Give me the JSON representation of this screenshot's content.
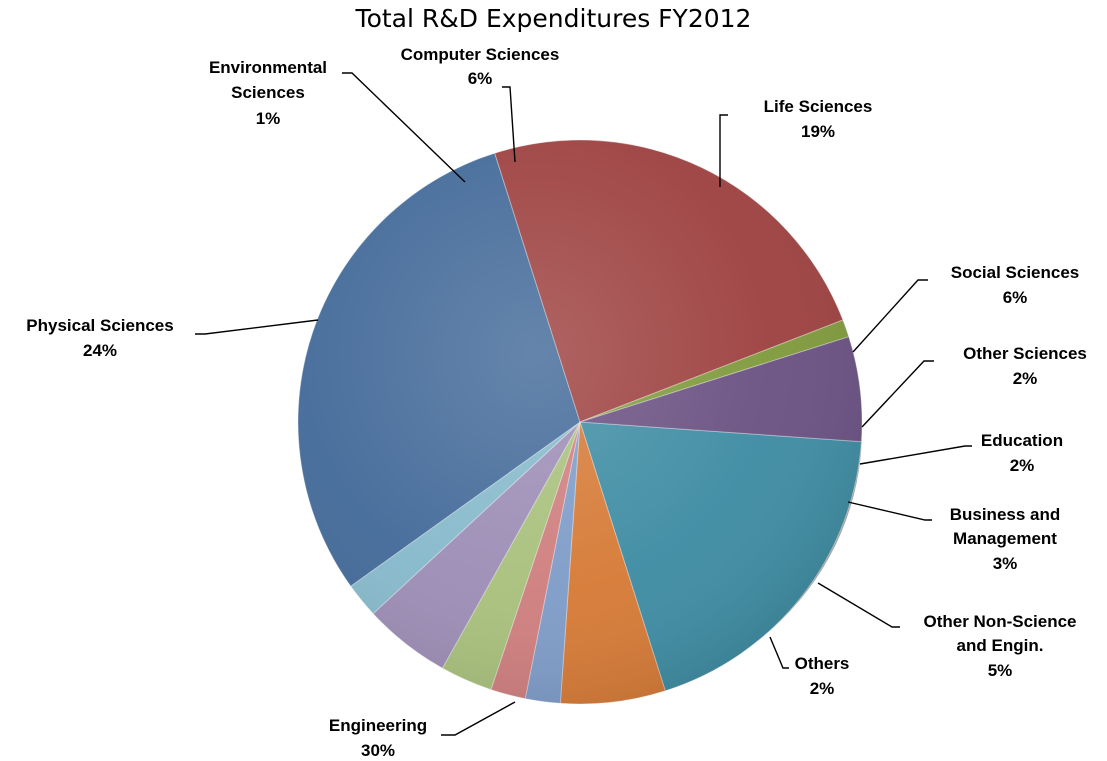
{
  "chart_data": {
    "type": "pie",
    "title": "Total R&D Expenditures FY2012",
    "slices": [
      {
        "name": "Life Sciences",
        "value": 19,
        "label_lines": [
          "Life Sciences",
          "19%"
        ],
        "color": "#3E8CA3"
      },
      {
        "name": "Social Sciences",
        "value": 6,
        "label_lines": [
          "Social Sciences",
          "6%"
        ],
        "color": "#D67A36"
      },
      {
        "name": "Other Sciences",
        "value": 2,
        "label_lines": [
          "Other Sciences",
          "2%"
        ],
        "color": "#7E9CC8"
      },
      {
        "name": "Education",
        "value": 2,
        "label_lines": [
          "Education",
          "2%"
        ],
        "color": "#CF7E7E"
      },
      {
        "name": "Business and Management",
        "value": 3,
        "label_lines": [
          "Business and",
          "Management",
          "3%"
        ],
        "color": "#A8C07C"
      },
      {
        "name": "Other Non-Science and Engin.",
        "value": 5,
        "label_lines": [
          "Other Non-Science",
          "and Engin.",
          "5%"
        ],
        "color": "#9C8DB5"
      },
      {
        "name": "Others",
        "value": 2,
        "label_lines": [
          "Others",
          "2%"
        ],
        "color": "#86B9CB"
      },
      {
        "name": "Engineering",
        "value": 30,
        "label_lines": [
          "Engineering",
          "30%"
        ],
        "color": "#436A99"
      },
      {
        "name": "Physical Sciences",
        "value": 24,
        "label_lines": [
          "Physical Sciences",
          "24%"
        ],
        "color": "#9D4140"
      },
      {
        "name": "Environmental Sciences",
        "value": 1,
        "label_lines": [
          "Environmental",
          "Sciences",
          "1%"
        ],
        "color": "#7F9A3C"
      },
      {
        "name": "Computer Sciences",
        "value": 6,
        "label_lines": [
          "Computer Sciences",
          "6%"
        ],
        "color": "#6A5182"
      }
    ]
  }
}
